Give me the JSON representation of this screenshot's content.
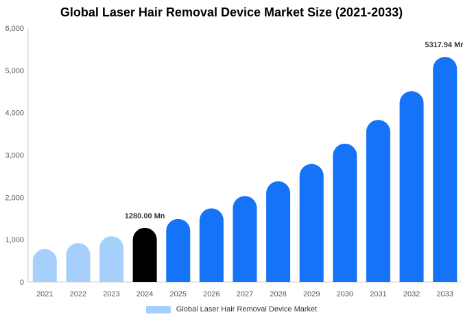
{
  "chart_data": {
    "type": "bar",
    "title": "Global Laser Hair Removal Device Market Size (2021-2033)",
    "categories": [
      "2021",
      "2022",
      "2023",
      "2024",
      "2025",
      "2026",
      "2027",
      "2028",
      "2029",
      "2030",
      "2031",
      "2032",
      "2033"
    ],
    "series": [
      {
        "name": "Global Laser Hair Removal Device Market",
        "values": [
          780,
          920,
          1080,
          1280,
          1490,
          1740,
          2030,
          2380,
          2790,
          3270,
          3830,
          4510,
          5317.94
        ]
      }
    ],
    "ylim": [
      0,
      6000
    ],
    "yticks": [
      "0",
      "1,000",
      "2,000",
      "3,000",
      "4,000",
      "5,000",
      "6,000"
    ],
    "data_labels": [
      {
        "category": "2024",
        "text": "1280.00 Mn"
      },
      {
        "category": "2033",
        "text": "5317.94 Mn"
      }
    ],
    "colors": {
      "historical": "#a6d0fb",
      "base_year": "#000000",
      "forecast": "#1473f7",
      "legend": "#a6d0fb"
    },
    "grid": false,
    "legend_position": "bottom"
  }
}
